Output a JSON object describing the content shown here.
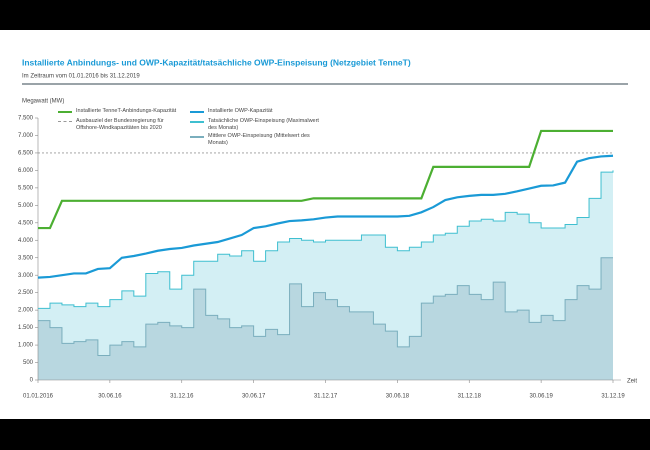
{
  "chart_data": {
    "type": "line",
    "title": "Installierte Anbindungs- und OWP-Kapazität/tatsächliche OWP-Einspeisung (Netzgebiet TenneT)",
    "subtitle": "Im Zeitraum vom 01.01.2016 bis 31.12.2019",
    "y_label": "Megawatt (MW)",
    "x_label": "Zeit",
    "categories": [
      "01.01.2016",
      null,
      null,
      null,
      null,
      null,
      "30.06.16",
      null,
      null,
      null,
      null,
      null,
      "31.12.16",
      null,
      null,
      null,
      null,
      null,
      "30.06.17",
      null,
      null,
      null,
      null,
      null,
      "31.12.17",
      null,
      null,
      null,
      null,
      null,
      "30.06.18",
      null,
      null,
      null,
      null,
      null,
      "31.12.18",
      null,
      null,
      null,
      null,
      null,
      "30.06.19",
      null,
      null,
      null,
      null,
      null,
      "31.12.19"
    ],
    "ylim": [
      0,
      7500
    ],
    "yticks": [
      0,
      500,
      {
        "value": 1000,
        "label": "1.000"
      },
      {
        "value": 1500,
        "label": "1.500"
      },
      {
        "value": 2000,
        "label": "2.000"
      },
      {
        "value": 2500,
        "label": "2.500"
      },
      {
        "value": 3000,
        "label": "3.000"
      },
      {
        "value": 3500,
        "label": "3.500"
      },
      {
        "value": 4000,
        "label": "4.000"
      },
      {
        "value": 4500,
        "label": "4.500"
      },
      {
        "value": 5000,
        "label": "5.000"
      },
      {
        "value": 5500,
        "label": "5.500"
      },
      {
        "value": 6000,
        "label": "6.000"
      },
      {
        "value": 6500,
        "label": "6.500"
      },
      {
        "value": 7000,
        "label": "7.000"
      },
      {
        "value": 7500,
        "label": "7.500"
      }
    ],
    "target": {
      "value": 6500,
      "label": "Ausbauziel der Bundesregierung für Offshore-Windkapazitäten bis 2020",
      "color": "#999999"
    },
    "series": [
      {
        "name": "Installierte TenneT-Anbindungs-Kapazität",
        "color": "#4caf32",
        "step": false,
        "fill": null,
        "values": [
          4350,
          4350,
          5130,
          5130,
          5130,
          5130,
          5130,
          5130,
          5130,
          5130,
          5130,
          5130,
          5130,
          5130,
          5130,
          5130,
          5130,
          5130,
          5130,
          5130,
          5130,
          5130,
          5130,
          5200,
          5200,
          5200,
          5200,
          5200,
          5200,
          5200,
          5200,
          5200,
          5200,
          6100,
          6100,
          6100,
          6100,
          6100,
          6100,
          6100,
          6100,
          6100,
          7130,
          7130,
          7130,
          7130,
          7130,
          7130,
          7130
        ]
      },
      {
        "name": "Installierte OWP-Kapazität",
        "color": "#1a9ad6",
        "step": false,
        "fill": null,
        "values": [
          2930,
          2950,
          3000,
          3050,
          3050,
          3180,
          3200,
          3500,
          3550,
          3620,
          3700,
          3750,
          3780,
          3850,
          3900,
          3950,
          4050,
          4150,
          4350,
          4400,
          4480,
          4550,
          4570,
          4600,
          4650,
          4680,
          4680,
          4680,
          4680,
          4680,
          4680,
          4700,
          4800,
          4950,
          5150,
          5230,
          5270,
          5300,
          5300,
          5330,
          5400,
          5480,
          5560,
          5570,
          5650,
          6250,
          6350,
          6400,
          6420
        ]
      },
      {
        "name": "Tatsächliche OWP-Einspeisung (Maximalwert des Monats)",
        "color": "#3fbfd0",
        "step": true,
        "fill": "#d3eff4",
        "values": [
          2050,
          2200,
          2150,
          2100,
          2200,
          2100,
          2300,
          2550,
          2400,
          3050,
          3100,
          2600,
          3000,
          3400,
          3400,
          3600,
          3550,
          3700,
          3400,
          3700,
          3950,
          4050,
          4000,
          3950,
          4000,
          4000,
          4000,
          4150,
          4150,
          3800,
          3700,
          3800,
          3950,
          4150,
          4200,
          4400,
          4550,
          4600,
          4550,
          4800,
          4750,
          4500,
          4350,
          4350,
          4450,
          4650,
          5200,
          5950,
          6000
        ]
      },
      {
        "name": "Mittlere OWP-Einspeisung (Mittelwert des Monats)",
        "color": "#7aaebd",
        "step": true,
        "fill": "#b3d2dc",
        "values": [
          1700,
          1500,
          1050,
          1100,
          1150,
          700,
          1000,
          1100,
          950,
          1600,
          1650,
          1550,
          1500,
          2600,
          1850,
          1750,
          1500,
          1550,
          1250,
          1450,
          1300,
          2750,
          2100,
          2500,
          2300,
          2100,
          1950,
          1950,
          1600,
          1400,
          950,
          1250,
          2200,
          2400,
          2450,
          2700,
          2450,
          2300,
          2800,
          1950,
          2000,
          1650,
          1850,
          1700,
          2300,
          2700,
          2600,
          3500,
          3500
        ]
      }
    ]
  }
}
